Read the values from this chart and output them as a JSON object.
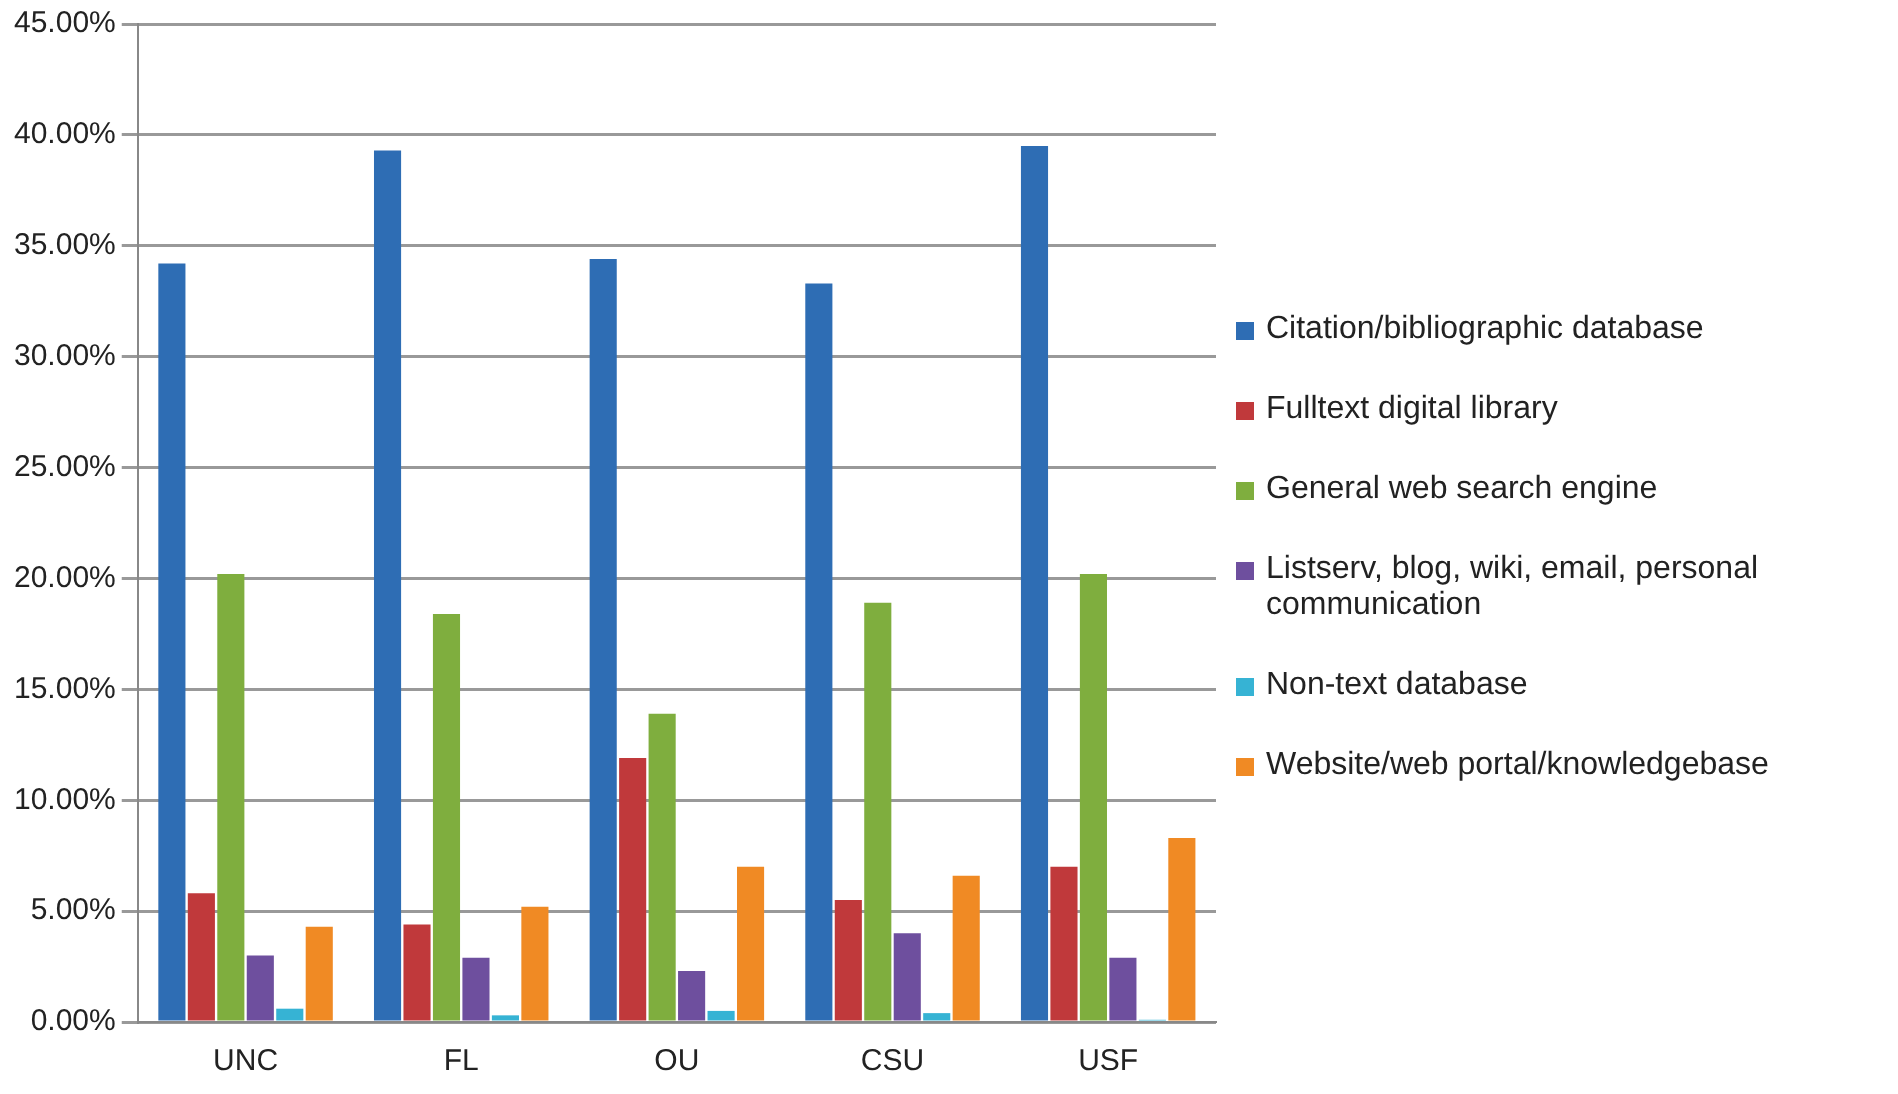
{
  "chart_data": {
    "type": "bar",
    "categories": [
      "UNC",
      "FL",
      "OU",
      "CSU",
      "USF"
    ],
    "series": [
      {
        "name": "Citation/bibliographic database",
        "color": "#2e6db4",
        "values": [
          34.2,
          39.3,
          34.4,
          33.3,
          39.5
        ]
      },
      {
        "name": "Fulltext digital library",
        "color": "#c0393b",
        "values": [
          5.8,
          4.4,
          11.9,
          5.5,
          7.0
        ]
      },
      {
        "name": "General web search engine",
        "color": "#7fae3e",
        "values": [
          20.2,
          18.4,
          13.9,
          18.9,
          20.2
        ]
      },
      {
        "name": "Listserv, blog, wiki, email, personal communication",
        "color": "#6e4f9e",
        "values": [
          3.0,
          2.9,
          2.3,
          4.0,
          2.9
        ]
      },
      {
        "name": "Non-text database",
        "color": "#36b3d4",
        "values": [
          0.6,
          0.3,
          0.5,
          0.4,
          0.1
        ]
      },
      {
        "name": "Website/web portal/knowledgebase",
        "color": "#f08a24",
        "values": [
          4.3,
          5.2,
          7.0,
          6.6,
          8.3
        ]
      }
    ],
    "ylim": [
      0,
      45
    ],
    "yticks": [
      {
        "value": 0,
        "label": "0.00%"
      },
      {
        "value": 5,
        "label": "5.00%"
      },
      {
        "value": 10,
        "label": "10.00%"
      },
      {
        "value": 15,
        "label": "15.00%"
      },
      {
        "value": 20,
        "label": "20.00%"
      },
      {
        "value": 25,
        "label": "25.00%"
      },
      {
        "value": 30,
        "label": "30.00%"
      },
      {
        "value": 35,
        "label": "35.00%"
      },
      {
        "value": 40,
        "label": "40.00%"
      },
      {
        "value": 45,
        "label": "45.00%"
      }
    ],
    "grid": "y",
    "legend": "right"
  }
}
